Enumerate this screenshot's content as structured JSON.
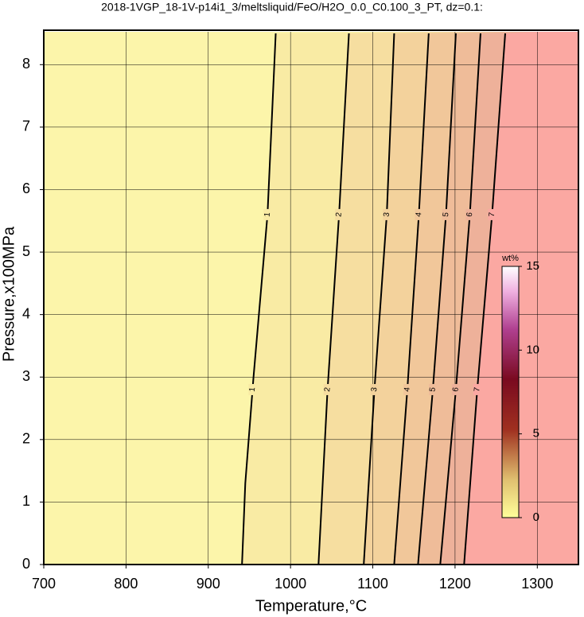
{
  "chart_data": {
    "type": "contour",
    "title": "2018-1VGP_18-1V-p14i1_3/meltsliquid/FeO/H2O_0.0_C0.100_3_PT, dz=0.1:",
    "xlabel": "Temperature,°C",
    "ylabel": "Pressure,x100MPa",
    "xlim": [
      700,
      1350
    ],
    "ylim": [
      0,
      8.5
    ],
    "xticks": [
      700,
      800,
      900,
      1000,
      1100,
      1200,
      1300
    ],
    "yticks": [
      0,
      1,
      2,
      3,
      4,
      5,
      6,
      7,
      8
    ],
    "grid": true,
    "contours": [
      {
        "level": 1,
        "pressure": [
          0,
          1.3,
          3,
          5.6,
          8.5
        ],
        "temperature": [
          941,
          945,
          955,
          972,
          982
        ]
      },
      {
        "level": 2,
        "pressure": [
          0,
          2.8,
          5.6,
          8.5
        ],
        "temperature": [
          1034,
          1045,
          1059,
          1071
        ]
      },
      {
        "level": 3,
        "pressure": [
          0,
          2.8,
          5.6,
          8.5
        ],
        "temperature": [
          1089,
          1102,
          1117,
          1126
        ]
      },
      {
        "level": 4,
        "pressure": [
          0,
          2.8,
          5.6,
          8.5
        ],
        "temperature": [
          1126,
          1142,
          1156,
          1168
        ]
      },
      {
        "level": 5,
        "pressure": [
          0,
          2.8,
          5.6,
          8.5
        ],
        "temperature": [
          1155,
          1173,
          1189,
          1201
        ]
      },
      {
        "level": 6,
        "pressure": [
          0,
          2.8,
          5.6,
          8.5
        ],
        "temperature": [
          1182,
          1201,
          1218,
          1231
        ]
      },
      {
        "level": 7,
        "pressure": [
          0,
          2.8,
          5.6,
          8.5
        ],
        "temperature": [
          1211,
          1227,
          1245,
          1261
        ]
      }
    ],
    "colorbar": {
      "title": "wt%",
      "lim": [
        0,
        15
      ],
      "ticks": [
        0,
        5,
        10,
        15
      ]
    }
  }
}
